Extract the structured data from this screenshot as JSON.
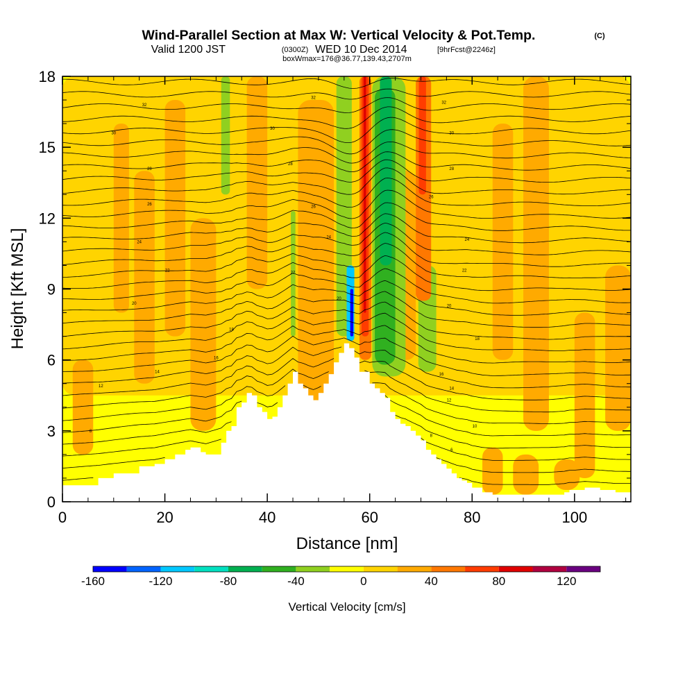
{
  "header": {
    "title_main": "Wind-Parallel Section at Max W: Vertical Velocity & Pot.Temp.",
    "title_mark": "(C)",
    "subtitle_pre": "Valid 1200 JST",
    "subtitle_utc": "(0300Z)",
    "subtitle_mid": "WED 10 Dec 2014",
    "subtitle_fcst": "[9hrFcst@2246z]",
    "box_line": "boxWmax=176@36.77,139.43,2707m"
  },
  "chart_data": {
    "type": "heatmap",
    "title": "Wind-Parallel Section at Max W: Vertical Velocity & Pot.Temp.",
    "xlabel": "Distance [nm]",
    "ylabel": "Height [Kft MSL]",
    "xlim": [
      0,
      111
    ],
    "ylim": [
      0,
      18
    ],
    "x_ticks": [
      0,
      20,
      40,
      60,
      80,
      100
    ],
    "y_ticks": [
      0,
      3,
      6,
      9,
      12,
      15,
      18
    ],
    "colorbar": {
      "label": "Vertical Velocity [cm/s]",
      "range": [
        -160,
        140
      ],
      "step": 20,
      "tick_values": [
        -160,
        -120,
        -80,
        -40,
        0,
        40,
        80,
        120
      ],
      "colors": [
        "#0000ff",
        "#0064ff",
        "#00c8ff",
        "#00e0c0",
        "#00b050",
        "#30b020",
        "#90d020",
        "#ffff00",
        "#ffd400",
        "#ffaa00",
        "#ff7800",
        "#ff3c00",
        "#e00000",
        "#b00040",
        "#6a0080"
      ]
    },
    "terrain_profile": {
      "x": [
        0,
        7,
        10,
        15,
        18,
        20,
        22,
        24,
        25,
        27,
        28,
        31,
        32,
        33,
        34,
        35,
        36,
        37,
        38,
        39,
        40,
        41,
        42,
        43,
        44,
        45,
        46,
        47,
        48,
        49,
        50,
        51,
        52,
        53,
        54,
        55,
        56,
        57,
        58,
        59,
        60,
        61,
        62,
        63,
        64,
        65,
        66,
        67,
        68,
        69,
        70,
        71,
        72,
        73,
        74,
        75,
        76,
        77,
        78,
        79,
        80,
        82,
        84,
        86,
        90,
        95,
        98,
        99,
        100,
        102,
        105,
        108,
        111
      ],
      "height_kft": [
        0.7,
        1.0,
        1.2,
        1.5,
        1.6,
        1.8,
        2.0,
        2.2,
        2.3,
        2.1,
        2.0,
        2.5,
        3.0,
        3.2,
        4.0,
        4.2,
        4.6,
        4.5,
        4.0,
        3.8,
        3.5,
        3.6,
        4.0,
        4.5,
        5.0,
        5.5,
        5.0,
        4.8,
        4.5,
        4.3,
        4.6,
        5.0,
        5.4,
        5.9,
        6.3,
        6.7,
        6.5,
        6.1,
        5.5,
        5.5,
        5.0,
        4.8,
        4.6,
        4.4,
        3.8,
        3.5,
        3.3,
        3.2,
        3.0,
        2.8,
        2.6,
        2.2,
        2.0,
        1.8,
        1.6,
        1.4,
        1.2,
        1.0,
        0.9,
        0.8,
        0.6,
        0.4,
        0.3,
        0.3,
        0.3,
        0.3,
        0.4,
        0.5,
        0.5,
        0.6,
        0.5,
        0.4,
        0.4
      ]
    },
    "contour_labels": [
      {
        "text": "32",
        "x": 16,
        "y": 16.8
      },
      {
        "text": "30",
        "x": 10,
        "y": 15.6
      },
      {
        "text": "28",
        "x": 17,
        "y": 14.1
      },
      {
        "text": "26",
        "x": 17,
        "y": 12.6
      },
      {
        "text": "24",
        "x": 15,
        "y": 11.0
      },
      {
        "text": "22",
        "x": 20.5,
        "y": 9.8
      },
      {
        "text": "20",
        "x": 14,
        "y": 8.4
      },
      {
        "text": "18",
        "x": 33,
        "y": 7.3
      },
      {
        "text": "16",
        "x": 30,
        "y": 6.1
      },
      {
        "text": "14",
        "x": 18.5,
        "y": 5.5
      },
      {
        "text": "12",
        "x": 7.5,
        "y": 4.9
      },
      {
        "text": "8",
        "x": 5.5,
        "y": 3.0
      },
      {
        "text": "32",
        "x": 49,
        "y": 17.1
      },
      {
        "text": "30",
        "x": 41,
        "y": 15.8
      },
      {
        "text": "28",
        "x": 44.5,
        "y": 14.3
      },
      {
        "text": "26",
        "x": 49,
        "y": 12.5
      },
      {
        "text": "24",
        "x": 52,
        "y": 11.2
      },
      {
        "text": "22",
        "x": 45,
        "y": 9.7
      },
      {
        "text": "20",
        "x": 54,
        "y": 8.6
      },
      {
        "text": "32",
        "x": 74.5,
        "y": 16.9
      },
      {
        "text": "30",
        "x": 76,
        "y": 15.6
      },
      {
        "text": "28",
        "x": 76,
        "y": 14.1
      },
      {
        "text": "26",
        "x": 72,
        "y": 12.9
      },
      {
        "text": "24",
        "x": 79,
        "y": 11.1
      },
      {
        "text": "22",
        "x": 78.5,
        "y": 9.8
      },
      {
        "text": "20",
        "x": 75.5,
        "y": 8.3
      },
      {
        "text": "18",
        "x": 81,
        "y": 6.9
      },
      {
        "text": "16",
        "x": 74,
        "y": 5.4
      },
      {
        "text": "14",
        "x": 76,
        "y": 4.8
      },
      {
        "text": "12",
        "x": 75.5,
        "y": 4.3
      },
      {
        "text": "10",
        "x": 80.5,
        "y": 3.2
      },
      {
        "text": "8",
        "x": 72,
        "y": 2.8
      },
      {
        "text": "6",
        "x": 76,
        "y": 2.2
      }
    ]
  }
}
